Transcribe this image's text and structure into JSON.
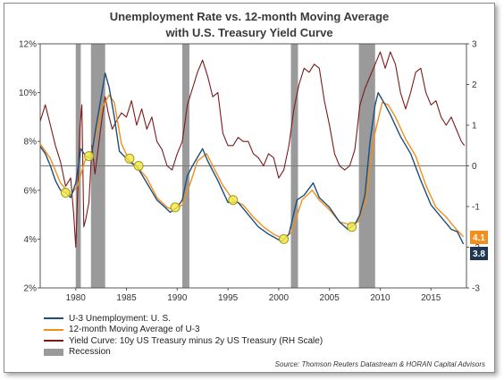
{
  "title_line1": "Unemployment Rate vs. 12-month Moving Average",
  "title_line2": "with U.S. Treasury Yield Curve",
  "source": "Source: Thomson Reuters Datastream & HORAN Capital Advisors",
  "legend": [
    {
      "label": "U-3 Unemployment: U. S.",
      "color": "#1f4e79",
      "kind": "line"
    },
    {
      "label": "12-month Moving Average of U-3",
      "color": "#f28e1c",
      "kind": "line"
    },
    {
      "label": "Yield Curve: 10y US Treasury minus 2y US Treasury (RH Scale)",
      "color": "#7b1a1a",
      "kind": "line"
    },
    {
      "label": "Recession",
      "color": "#9a9a9a",
      "kind": "box"
    }
  ],
  "end_labels": {
    "ma": {
      "text": "4.1",
      "color": "#f28e1c"
    },
    "u3": {
      "text": "3.8",
      "color": "#1f3552"
    }
  },
  "chart_data": {
    "type": "line",
    "x_range": [
      1976.5,
      2018.5
    ],
    "x_ticks": [
      "1980",
      "1985",
      "1990",
      "1995",
      "2000",
      "2005",
      "2010",
      "2015"
    ],
    "y_left": {
      "min": 2,
      "max": 12,
      "ticks": [
        "2%",
        "4%",
        "6%",
        "8%",
        "10%",
        "12%"
      ]
    },
    "y_right": {
      "min": -3,
      "max": 3,
      "ticks": [
        "-3",
        "-2",
        "-1",
        "0",
        "1",
        "2",
        "3"
      ],
      "zero_line": true
    },
    "recessions": [
      [
        1980.0,
        1980.5
      ],
      [
        1981.5,
        1982.9
      ],
      [
        1990.5,
        1991.2
      ],
      [
        2001.2,
        2001.9
      ],
      [
        2007.9,
        2009.5
      ]
    ],
    "series": [
      {
        "name": "U-3 Unemployment: U. S.",
        "axis": "left",
        "color": "#1f4e79",
        "points": [
          [
            1976.5,
            7.8
          ],
          [
            1977,
            7.5
          ],
          [
            1977.5,
            7.0
          ],
          [
            1978,
            6.4
          ],
          [
            1978.5,
            6.0
          ],
          [
            1979,
            5.9
          ],
          [
            1979.5,
            5.7
          ],
          [
            1980,
            6.3
          ],
          [
            1980.5,
            7.7
          ],
          [
            1981,
            7.4
          ],
          [
            1981.5,
            7.3
          ],
          [
            1982,
            8.6
          ],
          [
            1982.5,
            9.8
          ],
          [
            1982.9,
            10.8
          ],
          [
            1983.3,
            10.2
          ],
          [
            1983.8,
            9.0
          ],
          [
            1984.3,
            7.6
          ],
          [
            1985,
            7.3
          ],
          [
            1985.5,
            7.1
          ],
          [
            1986,
            7.0
          ],
          [
            1987,
            6.3
          ],
          [
            1988,
            5.6
          ],
          [
            1988.8,
            5.3
          ],
          [
            1989.3,
            5.1
          ],
          [
            1990,
            5.3
          ],
          [
            1990.5,
            5.6
          ],
          [
            1991,
            6.6
          ],
          [
            1991.5,
            7.0
          ],
          [
            1992.5,
            7.7
          ],
          [
            1993,
            7.2
          ],
          [
            1994,
            6.4
          ],
          [
            1995,
            5.5
          ],
          [
            1996,
            5.5
          ],
          [
            1997,
            5.0
          ],
          [
            1998,
            4.5
          ],
          [
            1999,
            4.2
          ],
          [
            2000.3,
            3.9
          ],
          [
            2001,
            4.2
          ],
          [
            2001.8,
            5.6
          ],
          [
            2002.5,
            5.8
          ],
          [
            2003.4,
            6.3
          ],
          [
            2004,
            5.7
          ],
          [
            2005,
            5.3
          ],
          [
            2006,
            4.7
          ],
          [
            2006.8,
            4.4
          ],
          [
            2007.5,
            4.6
          ],
          [
            2008,
            5.0
          ],
          [
            2008.5,
            5.8
          ],
          [
            2009,
            8.0
          ],
          [
            2009.5,
            9.5
          ],
          [
            2009.8,
            10.0
          ],
          [
            2010.5,
            9.5
          ],
          [
            2011,
            9.1
          ],
          [
            2012,
            8.2
          ],
          [
            2013,
            7.5
          ],
          [
            2014,
            6.4
          ],
          [
            2015,
            5.4
          ],
          [
            2016,
            4.9
          ],
          [
            2017,
            4.4
          ],
          [
            2017.6,
            4.3
          ],
          [
            2018.2,
            3.8
          ]
        ]
      },
      {
        "name": "12-month Moving Average of U-3",
        "axis": "left",
        "color": "#f28e1c",
        "points": [
          [
            1976.5,
            7.9
          ],
          [
            1977.5,
            7.3
          ],
          [
            1978.5,
            6.3
          ],
          [
            1979.5,
            5.8
          ],
          [
            1980.2,
            6.2
          ],
          [
            1980.9,
            7.2
          ],
          [
            1981.5,
            7.5
          ],
          [
            1982,
            8.3
          ],
          [
            1982.6,
            9.4
          ],
          [
            1983.3,
            9.9
          ],
          [
            1983.8,
            9.6
          ],
          [
            1984.5,
            7.9
          ],
          [
            1985.3,
            7.2
          ],
          [
            1986,
            7.0
          ],
          [
            1987,
            6.5
          ],
          [
            1988,
            5.7
          ],
          [
            1989,
            5.3
          ],
          [
            1989.6,
            5.2
          ],
          [
            1990.5,
            5.4
          ],
          [
            1991.3,
            6.3
          ],
          [
            1992,
            7.2
          ],
          [
            1992.9,
            7.5
          ],
          [
            1993.5,
            7.0
          ],
          [
            1994.5,
            6.2
          ],
          [
            1995.5,
            5.6
          ],
          [
            1996.5,
            5.4
          ],
          [
            1997.5,
            4.9
          ],
          [
            1998.5,
            4.5
          ],
          [
            1999.5,
            4.2
          ],
          [
            2000.5,
            4.0
          ],
          [
            2001.3,
            4.3
          ],
          [
            2002.3,
            5.6
          ],
          [
            2003.3,
            6.0
          ],
          [
            2004,
            5.6
          ],
          [
            2005,
            5.2
          ],
          [
            2006,
            4.7
          ],
          [
            2007,
            4.6
          ],
          [
            2007.8,
            4.7
          ],
          [
            2008.6,
            5.6
          ],
          [
            2009.4,
            8.2
          ],
          [
            2010.2,
            9.6
          ],
          [
            2010.8,
            9.5
          ],
          [
            2011.5,
            9.0
          ],
          [
            2012.5,
            8.1
          ],
          [
            2013.5,
            7.4
          ],
          [
            2014.5,
            6.2
          ],
          [
            2015.5,
            5.3
          ],
          [
            2016.5,
            4.9
          ],
          [
            2017.5,
            4.4
          ],
          [
            2018.2,
            4.1
          ]
        ]
      },
      {
        "name": "Yield Curve: 10y US Treasury minus 2y US Treasury (RH Scale)",
        "axis": "right",
        "color": "#7b1a1a",
        "points": [
          [
            1976.5,
            1.1
          ],
          [
            1977,
            1.5
          ],
          [
            1977.5,
            1.0
          ],
          [
            1978,
            0.5
          ],
          [
            1978.5,
            0.1
          ],
          [
            1979,
            -0.5
          ],
          [
            1979.5,
            -0.3
          ],
          [
            1979.8,
            -1.2
          ],
          [
            1980,
            -2.0
          ],
          [
            1980.2,
            -0.6
          ],
          [
            1980.4,
            0.9
          ],
          [
            1980.6,
            1.5
          ],
          [
            1980.8,
            -1.5
          ],
          [
            1981,
            -1.3
          ],
          [
            1981.3,
            -0.9
          ],
          [
            1981.6,
            0.5
          ],
          [
            1981.9,
            -0.2
          ],
          [
            1982.3,
            0.6
          ],
          [
            1982.6,
            1.2
          ],
          [
            1982.9,
            1.7
          ],
          [
            1983.2,
            1.3
          ],
          [
            1983.6,
            0.9
          ],
          [
            1984,
            1.1
          ],
          [
            1984.5,
            1.3
          ],
          [
            1985,
            1.2
          ],
          [
            1985.5,
            1.6
          ],
          [
            1986,
            1.0
          ],
          [
            1986.5,
            1.4
          ],
          [
            1987,
            0.9
          ],
          [
            1987.5,
            1.2
          ],
          [
            1988,
            0.6
          ],
          [
            1988.5,
            0.4
          ],
          [
            1989,
            0.0
          ],
          [
            1989.5,
            -0.1
          ],
          [
            1990,
            0.3
          ],
          [
            1990.5,
            0.6
          ],
          [
            1991,
            1.5
          ],
          [
            1991.5,
            1.9
          ],
          [
            1992,
            2.3
          ],
          [
            1992.5,
            2.6
          ],
          [
            1993,
            2.2
          ],
          [
            1993.5,
            1.7
          ],
          [
            1994,
            1.8
          ],
          [
            1994.5,
            0.8
          ],
          [
            1995,
            0.5
          ],
          [
            1995.5,
            0.5
          ],
          [
            1996,
            0.7
          ],
          [
            1996.5,
            0.6
          ],
          [
            1997,
            0.6
          ],
          [
            1997.5,
            0.3
          ],
          [
            1998,
            0.2
          ],
          [
            1998.5,
            0.0
          ],
          [
            1999,
            0.3
          ],
          [
            1999.5,
            0.2
          ],
          [
            2000,
            -0.3
          ],
          [
            2000.5,
            -0.1
          ],
          [
            2001,
            0.5
          ],
          [
            2001.5,
            1.4
          ],
          [
            2002,
            2.0
          ],
          [
            2002.5,
            2.4
          ],
          [
            2003,
            2.3
          ],
          [
            2003.5,
            2.5
          ],
          [
            2004,
            2.4
          ],
          [
            2004.5,
            1.6
          ],
          [
            2005,
            1.0
          ],
          [
            2005.5,
            0.3
          ],
          [
            2006,
            0.0
          ],
          [
            2006.5,
            -0.1
          ],
          [
            2007,
            0.0
          ],
          [
            2007.5,
            0.4
          ],
          [
            2008,
            1.5
          ],
          [
            2008.5,
            1.9
          ],
          [
            2009,
            2.2
          ],
          [
            2009.5,
            2.5
          ],
          [
            2010,
            2.8
          ],
          [
            2010.5,
            2.4
          ],
          [
            2011,
            2.8
          ],
          [
            2011.5,
            2.5
          ],
          [
            2012,
            1.8
          ],
          [
            2012.5,
            1.4
          ],
          [
            2013,
            1.8
          ],
          [
            2013.5,
            2.3
          ],
          [
            2014,
            2.4
          ],
          [
            2014.5,
            1.8
          ],
          [
            2015,
            1.5
          ],
          [
            2015.5,
            1.6
          ],
          [
            2016,
            1.2
          ],
          [
            2016.5,
            1.0
          ],
          [
            2017,
            1.2
          ],
          [
            2017.5,
            0.9
          ],
          [
            2018,
            0.6
          ],
          [
            2018.3,
            0.5
          ]
        ]
      }
    ],
    "highlight_points": [
      [
        1979,
        5.9
      ],
      [
        1981.3,
        7.4
      ],
      [
        1985.3,
        7.3
      ],
      [
        1986.2,
        7.0
      ],
      [
        1989.8,
        5.3
      ],
      [
        1995.5,
        5.6
      ],
      [
        2000.5,
        4.0
      ],
      [
        2007.2,
        4.5
      ]
    ]
  }
}
